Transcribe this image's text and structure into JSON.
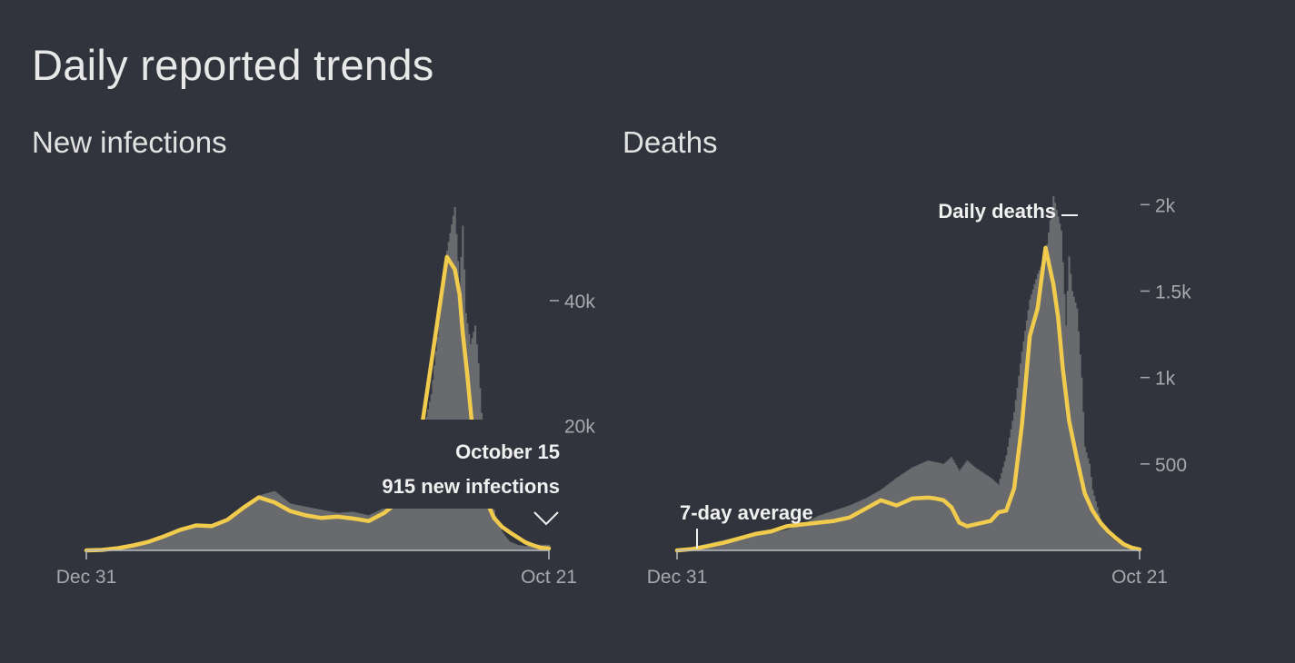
{
  "page": {
    "title": "Daily reported trends"
  },
  "colors": {
    "background": "#31343c",
    "bars": "#686a6e",
    "average_line": "#f0cb4d",
    "text": "#e8e8e8",
    "muted": "#a7a9ad"
  },
  "chart_data": [
    {
      "type": "area",
      "title": "New infections",
      "x_start": "Dec 31",
      "x_end": "Oct 21",
      "ylim": [
        0,
        56000
      ],
      "y_ticks": [
        {
          "value": 20000,
          "label": "20k"
        },
        {
          "value": 40000,
          "label": "40k"
        }
      ],
      "series": [
        {
          "name": "New infections",
          "kind": "bars",
          "x": [
            0,
            10,
            20,
            30,
            40,
            50,
            60,
            70,
            80,
            90,
            100,
            110,
            120,
            130,
            140,
            150,
            160,
            170,
            180,
            190,
            200,
            210,
            220,
            230,
            235,
            238,
            240,
            242,
            245,
            248,
            250,
            252,
            255,
            258,
            260,
            262,
            265,
            268,
            270,
            275,
            280,
            285,
            290,
            295
          ],
          "y": [
            0,
            80,
            350,
            800,
            1400,
            2400,
            3500,
            4100,
            3900,
            5000,
            7200,
            8800,
            9500,
            7500,
            7000,
            6500,
            6000,
            6200,
            5600,
            6800,
            9200,
            13000,
            25000,
            48000,
            55000,
            42000,
            52000,
            38000,
            33000,
            36000,
            30000,
            22000,
            14000,
            9000,
            6500,
            4500,
            3000,
            2000,
            1400,
            900,
            700,
            1000,
            900,
            915
          ]
        },
        {
          "name": "7-day average",
          "kind": "line",
          "x": [
            0,
            10,
            20,
            30,
            40,
            50,
            60,
            70,
            80,
            90,
            100,
            110,
            120,
            130,
            140,
            150,
            160,
            170,
            180,
            190,
            200,
            210,
            220,
            230,
            235,
            238,
            240,
            243,
            246,
            250,
            255,
            260,
            265,
            270,
            275,
            280,
            285,
            290,
            295
          ],
          "y": [
            0,
            80,
            350,
            800,
            1400,
            2300,
            3300,
            4000,
            3900,
            4900,
            6800,
            8500,
            7700,
            6300,
            5600,
            5200,
            5400,
            5100,
            4700,
            6000,
            8000,
            13000,
            30000,
            47000,
            45000,
            41000,
            35000,
            28000,
            20000,
            12000,
            8000,
            5200,
            3800,
            2900,
            2100,
            1300,
            800,
            400,
            300
          ]
        }
      ],
      "tooltip": {
        "date": "October 15",
        "value_text": "915 new infections"
      }
    },
    {
      "type": "area",
      "title": "Deaths",
      "x_start": "Dec 31",
      "x_end": "Oct 21",
      "ylim": [
        0,
        2070
      ],
      "y_ticks": [
        {
          "value": 500,
          "label": "500"
        },
        {
          "value": 1000,
          "label": "1k"
        },
        {
          "value": 1500,
          "label": "1.5k"
        },
        {
          "value": 2000,
          "label": "2k"
        }
      ],
      "series": [
        {
          "name": "Daily deaths",
          "kind": "bars",
          "x": [
            0,
            10,
            20,
            30,
            40,
            50,
            60,
            70,
            80,
            90,
            100,
            110,
            120,
            130,
            140,
            150,
            160,
            170,
            175,
            180,
            185,
            190,
            200,
            205,
            210,
            215,
            220,
            225,
            230,
            235,
            240,
            245,
            248,
            250,
            252,
            255,
            258,
            260,
            263,
            265,
            268,
            270,
            273,
            276,
            280,
            285,
            290,
            295
          ],
          "y": [
            0,
            20,
            40,
            60,
            80,
            90,
            100,
            120,
            150,
            200,
            230,
            260,
            300,
            350,
            420,
            480,
            520,
            500,
            540,
            460,
            520,
            480,
            420,
            380,
            550,
            800,
            1150,
            1450,
            1600,
            1700,
            2050,
            1850,
            1300,
            1700,
            1500,
            1400,
            1000,
            600,
            500,
            350,
            250,
            180,
            120,
            80,
            50,
            30,
            20,
            15
          ]
        },
        {
          "name": "7-day average",
          "kind": "line",
          "x": [
            0,
            10,
            20,
            30,
            40,
            50,
            60,
            70,
            80,
            90,
            100,
            110,
            120,
            130,
            140,
            150,
            160,
            165,
            170,
            175,
            180,
            185,
            190,
            200,
            205,
            210,
            215,
            220,
            225,
            230,
            235,
            240,
            243,
            246,
            250,
            255,
            260,
            265,
            270,
            275,
            280,
            285,
            290,
            295
          ],
          "y": [
            0,
            8,
            25,
            45,
            70,
            95,
            110,
            140,
            150,
            160,
            170,
            190,
            240,
            290,
            260,
            300,
            305,
            300,
            290,
            250,
            160,
            140,
            150,
            170,
            220,
            230,
            360,
            730,
            1240,
            1400,
            1750,
            1540,
            1350,
            1050,
            750,
            530,
            330,
            230,
            160,
            110,
            70,
            35,
            15,
            5
          ]
        }
      ],
      "annotations": [
        {
          "label": "Daily deaths"
        },
        {
          "label": "7-day average"
        }
      ]
    }
  ]
}
